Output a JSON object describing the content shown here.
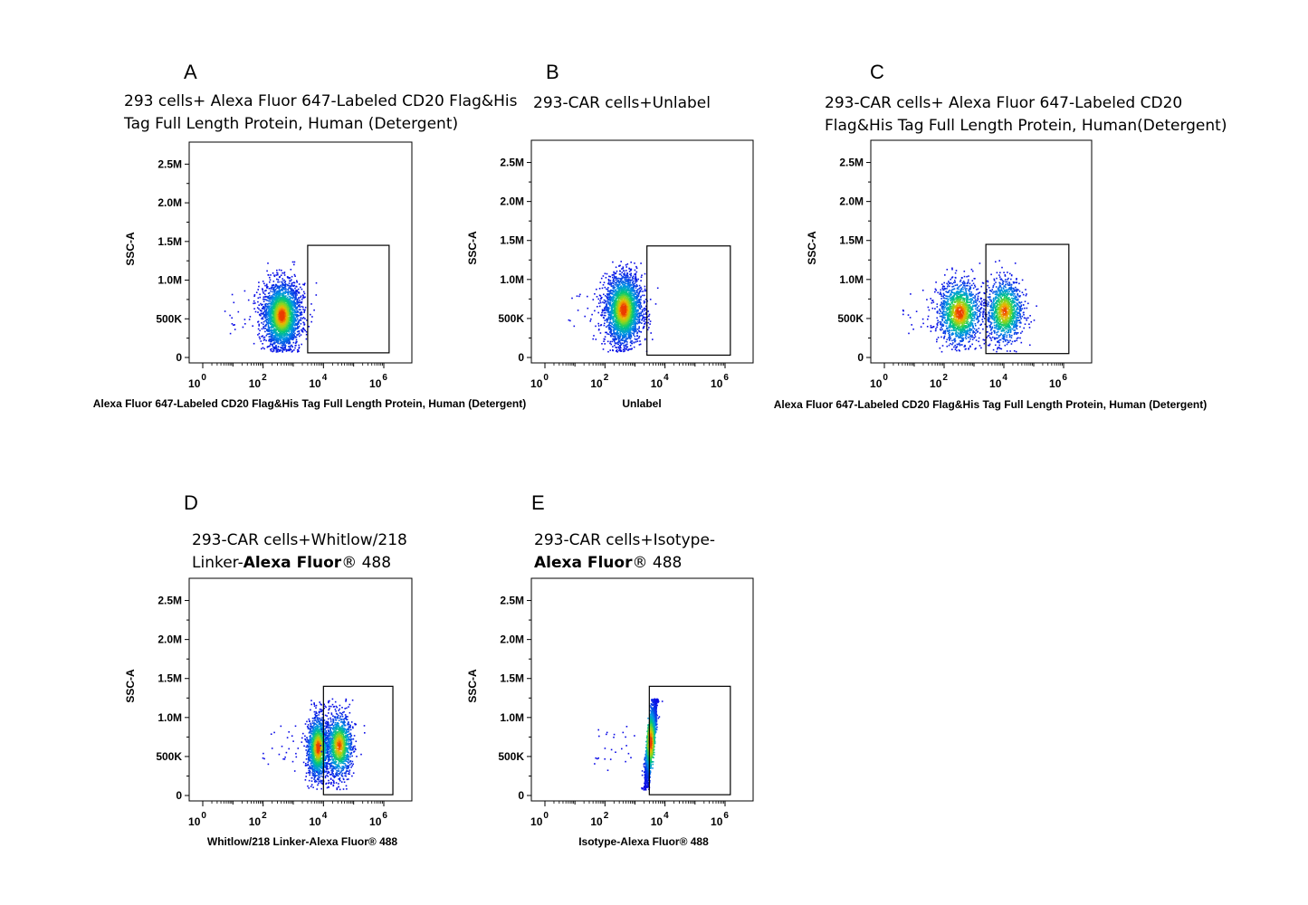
{
  "chart_data": [
    {
      "type": "scatter",
      "panel": "A",
      "title_lines": [
        [
          {
            "text": "293 cells+  Alexa Fluor 647-Labeled CD20 Flag&His",
            "bold": false
          }
        ],
        [
          {
            "text": "Tag Full Length Protein, Human (Detergent)",
            "bold": false
          }
        ]
      ],
      "xlabel": "Alexa Fluor 647-Labeled CD20 Flag&His Tag Full Length Protein, Human (Detergent)",
      "ylabel": "SSC-A",
      "x_scale": "log10",
      "xlim": [
        1,
        1000000
      ],
      "ylim": [
        0,
        2750000
      ],
      "x_tick_labels": [
        "10^0",
        "10^2",
        "10^4",
        "10^6"
      ],
      "y_tick_labels": [
        "0",
        "500K",
        "1.0M",
        "1.5M",
        "2.0M",
        "2.5M"
      ],
      "gate": {
        "x_range": [
          3000,
          1500000
        ],
        "y_range": [
          60000,
          1450000
        ]
      },
      "populations": [
        {
          "x_center_log10": 2.6,
          "y_center": 550000,
          "x_spread_log10": 0.3,
          "y_spread": 210000,
          "weight": 1.0
        }
      ]
    },
    {
      "type": "scatter",
      "panel": "B",
      "title_lines": [
        [
          {
            "text": "293-CAR cells+Unlabel",
            "bold": false
          }
        ]
      ],
      "xlabel": "Unlabel",
      "ylabel": "SSC-A",
      "x_scale": "log10",
      "xlim": [
        1,
        1000000
      ],
      "ylim": [
        0,
        2750000
      ],
      "x_tick_labels": [
        "10^0",
        "10^2",
        "10^4",
        "10^6"
      ],
      "y_tick_labels": [
        "0",
        "500K",
        "1.0M",
        "1.5M",
        "2.0M",
        "2.5M"
      ],
      "gate": {
        "x_range": [
          2500,
          1500000
        ],
        "y_range": [
          30000,
          1430000
        ]
      },
      "populations": [
        {
          "x_center_log10": 2.6,
          "y_center": 620000,
          "x_spread_log10": 0.3,
          "y_spread": 220000,
          "weight": 1.0
        }
      ]
    },
    {
      "type": "scatter",
      "panel": "C",
      "title_lines": [
        [
          {
            "text": "293-CAR   cells+     Alexa   Fluor   647-Labeled   CD20",
            "bold": false
          }
        ],
        [
          {
            "text": "Flag&His Tag Full Length Protein, Human(Detergent)",
            "bold": false
          }
        ]
      ],
      "xlabel": "Alexa Fluor 647-Labeled CD20 Flag&His Tag Full Length Protein, Human (Detergent)",
      "ylabel": "SSC-A",
      "x_scale": "log10",
      "xlim": [
        1,
        1000000
      ],
      "ylim": [
        0,
        2750000
      ],
      "x_tick_labels": [
        "10^0",
        "10^2",
        "10^4",
        "10^6"
      ],
      "y_tick_labels": [
        "0",
        "500K",
        "1.0M",
        "1.5M",
        "2.0M",
        "2.5M"
      ],
      "gate": {
        "x_range": [
          2500,
          1500000
        ],
        "y_range": [
          50000,
          1450000
        ]
      },
      "populations": [
        {
          "x_center_log10": 2.5,
          "y_center": 580000,
          "x_spread_log10": 0.35,
          "y_spread": 200000,
          "weight": 0.55
        },
        {
          "x_center_log10": 4.0,
          "y_center": 600000,
          "x_spread_log10": 0.3,
          "y_spread": 200000,
          "weight": 0.45
        }
      ]
    },
    {
      "type": "scatter",
      "panel": "D",
      "title_lines": [
        [
          {
            "text": "293-CAR        cells+Whitlow/218",
            "bold": false
          }
        ],
        [
          {
            "text": "Linker-",
            "bold": false
          },
          {
            "text": "Alexa Fluor",
            "bold": true
          },
          {
            "text": "® 488",
            "bold": false
          }
        ]
      ],
      "xlabel": "Whitlow/218 Linker-Alexa Fluor® 488",
      "ylabel": "SSC-A",
      "x_scale": "log10",
      "xlim": [
        1,
        1000000
      ],
      "ylim": [
        0,
        2750000
      ],
      "x_tick_labels": [
        "10^0",
        "10^2",
        "10^4",
        "10^6"
      ],
      "y_tick_labels": [
        "0",
        "500K",
        "1.0M",
        "1.5M",
        "2.0M",
        "2.5M"
      ],
      "gate": {
        "x_range": [
          10000,
          2000000
        ],
        "y_range": [
          10000,
          1400000
        ]
      },
      "populations": [
        {
          "x_center_log10": 3.8,
          "y_center": 620000,
          "x_spread_log10": 0.18,
          "y_spread": 200000,
          "weight": 0.55
        },
        {
          "x_center_log10": 4.5,
          "y_center": 650000,
          "x_spread_log10": 0.22,
          "y_spread": 200000,
          "weight": 0.45
        }
      ]
    },
    {
      "type": "scatter",
      "panel": "E",
      "title_lines": [
        [
          {
            "text": "293-CAR   cells+Isotype-",
            "bold": false
          }
        ],
        [
          {
            "text": "Alexa Fluor",
            "bold": true
          },
          {
            "text": "® 488",
            "bold": false
          }
        ]
      ],
      "xlabel": "Isotype-Alexa Fluor® 488",
      "ylabel": "SSC-A",
      "x_scale": "log10",
      "xlim": [
        1,
        1000000
      ],
      "ylim": [
        0,
        2750000
      ],
      "x_tick_labels": [
        "10^0",
        "10^2",
        "10^4",
        "10^6"
      ],
      "y_tick_labels": [
        "0",
        "500K",
        "1.0M",
        "1.5M",
        "2.0M",
        "2.5M"
      ],
      "gate": {
        "x_range": [
          3000,
          1500000
        ],
        "y_range": [
          10000,
          1400000
        ]
      },
      "populations": [
        {
          "x_center_log10": 3.5,
          "y_center": 700000,
          "x_spread_log10": 0.12,
          "y_spread": 250000,
          "weight": 1.0,
          "correlated": true
        }
      ]
    }
  ]
}
